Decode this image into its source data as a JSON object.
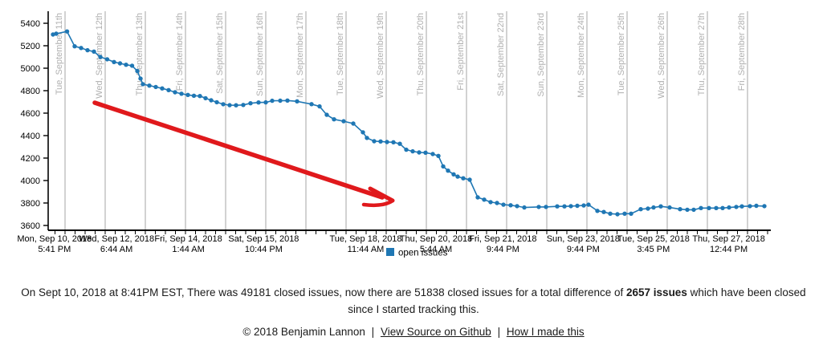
{
  "chart_data": {
    "type": "line",
    "title": "",
    "xlabel": "",
    "ylabel": "",
    "ylim": [
      3600,
      5400
    ],
    "grid": "vertical-daily",
    "legend": {
      "label": "open issues",
      "position": "bottom-center"
    },
    "colors": {
      "line": "#1f77b4",
      "grid": "#cdcdcd",
      "day_label": "#b0b0b0",
      "axis": "#000000",
      "arrow": "#e0191c"
    },
    "y_ticks": [
      5400,
      5200,
      5000,
      4800,
      4600,
      4400,
      4200,
      4000,
      3800,
      3600
    ],
    "x_gridlines": [
      {
        "day": 1,
        "label": "Tue, September 11th"
      },
      {
        "day": 2,
        "label": "Wed, September 12th"
      },
      {
        "day": 3,
        "label": "Thu, September 13th"
      },
      {
        "day": 4,
        "label": "Fri, September 14th"
      },
      {
        "day": 5,
        "label": "Sat, September 15th"
      },
      {
        "day": 6,
        "label": "Sun, September 16th"
      },
      {
        "day": 7,
        "label": "Mon, September 17th"
      },
      {
        "day": 8,
        "label": "Tue, September 18th"
      },
      {
        "day": 9,
        "label": "Wed, September 19th"
      },
      {
        "day": 10,
        "label": "Thu, September 20th"
      },
      {
        "day": 11,
        "label": "Fri, September 21st"
      },
      {
        "day": 12,
        "label": "Sat, September 22nd"
      },
      {
        "day": 13,
        "label": "Sun, September 23rd"
      },
      {
        "day": 14,
        "label": "Mon, September 24th"
      },
      {
        "day": 15,
        "label": "Tue, September 25th"
      },
      {
        "day": 16,
        "label": "Wed, September 26th"
      },
      {
        "day": 17,
        "label": "Thu, September 27th"
      },
      {
        "day": 18,
        "label": "Fri, September 28th"
      }
    ],
    "x_labels": [
      {
        "day": 0.737,
        "date": "Mon, Sep 10, 2018",
        "time": "5:41 PM"
      },
      {
        "day": 2.281,
        "date": "Wed, Sep 12, 2018",
        "time": "6:44 AM"
      },
      {
        "day": 4.072,
        "date": "Fri, Sep 14, 2018",
        "time": "1:44 AM"
      },
      {
        "day": 5.947,
        "date": "Sat, Sep 15, 2018",
        "time": "10:44 PM"
      },
      {
        "day": 8.489,
        "date": "Tue, Sep 18, 2018",
        "time": "11:44 AM"
      },
      {
        "day": 10.239,
        "date": "Thu, Sep 20, 2018",
        "time": "5:44 AM"
      },
      {
        "day": 11.906,
        "date": "Fri, Sep 21, 2018",
        "time": "9:44 PM"
      },
      {
        "day": 13.906,
        "date": "Sun, Sep 23, 2018",
        "time": "9:44 PM"
      },
      {
        "day": 15.656,
        "date": "Tue, Sep 25, 2018",
        "time": "3:45 PM"
      },
      {
        "day": 17.531,
        "date": "Thu, Sep 27, 2018",
        "time": "12:44 PM"
      }
    ],
    "points": [
      [
        0.7,
        5300
      ],
      [
        0.78,
        5307
      ],
      [
        1.05,
        5327
      ],
      [
        1.24,
        5195
      ],
      [
        1.4,
        5180
      ],
      [
        1.56,
        5160
      ],
      [
        1.72,
        5148
      ],
      [
        1.88,
        5100
      ],
      [
        2.05,
        5079
      ],
      [
        2.22,
        5055
      ],
      [
        2.37,
        5043
      ],
      [
        2.52,
        5031
      ],
      [
        2.67,
        5022
      ],
      [
        2.8,
        4975
      ],
      [
        2.88,
        4908
      ],
      [
        2.94,
        4858
      ],
      [
        3.1,
        4845
      ],
      [
        3.26,
        4833
      ],
      [
        3.42,
        4820
      ],
      [
        3.58,
        4805
      ],
      [
        3.74,
        4786
      ],
      [
        3.9,
        4773
      ],
      [
        4.06,
        4762
      ],
      [
        4.21,
        4755
      ],
      [
        4.36,
        4752
      ],
      [
        4.5,
        4733
      ],
      [
        4.64,
        4714
      ],
      [
        4.78,
        4697
      ],
      [
        4.94,
        4679
      ],
      [
        5.1,
        4671
      ],
      [
        5.26,
        4670
      ],
      [
        5.44,
        4673
      ],
      [
        5.62,
        4688
      ],
      [
        5.82,
        4695
      ],
      [
        6.0,
        4696
      ],
      [
        6.16,
        4710
      ],
      [
        6.36,
        4711
      ],
      [
        6.54,
        4712
      ],
      [
        6.78,
        4705
      ],
      [
        7.14,
        4680
      ],
      [
        7.34,
        4660
      ],
      [
        7.52,
        4585
      ],
      [
        7.7,
        4545
      ],
      [
        7.94,
        4528
      ],
      [
        8.18,
        4507
      ],
      [
        8.42,
        4429
      ],
      [
        8.52,
        4379
      ],
      [
        8.7,
        4350
      ],
      [
        8.86,
        4348
      ],
      [
        9.02,
        4343
      ],
      [
        9.18,
        4341
      ],
      [
        9.34,
        4327
      ],
      [
        9.5,
        4274
      ],
      [
        9.66,
        4260
      ],
      [
        9.82,
        4250
      ],
      [
        9.98,
        4248
      ],
      [
        10.16,
        4236
      ],
      [
        10.3,
        4219
      ],
      [
        10.42,
        4126
      ],
      [
        10.54,
        4088
      ],
      [
        10.68,
        4055
      ],
      [
        10.78,
        4035
      ],
      [
        10.92,
        4020
      ],
      [
        11.08,
        4007
      ],
      [
        11.28,
        3850
      ],
      [
        11.44,
        3830
      ],
      [
        11.6,
        3808
      ],
      [
        11.76,
        3800
      ],
      [
        11.92,
        3785
      ],
      [
        12.1,
        3780
      ],
      [
        12.26,
        3772
      ],
      [
        12.44,
        3760
      ],
      [
        12.8,
        3765
      ],
      [
        12.98,
        3765
      ],
      [
        13.26,
        3770
      ],
      [
        13.44,
        3770
      ],
      [
        13.6,
        3772
      ],
      [
        13.76,
        3775
      ],
      [
        13.92,
        3778
      ],
      [
        14.04,
        3785
      ],
      [
        14.26,
        3730
      ],
      [
        14.42,
        3720
      ],
      [
        14.58,
        3705
      ],
      [
        14.76,
        3700
      ],
      [
        14.94,
        3705
      ],
      [
        15.1,
        3705
      ],
      [
        15.34,
        3745
      ],
      [
        15.52,
        3750
      ],
      [
        15.66,
        3760
      ],
      [
        15.84,
        3770
      ],
      [
        16.06,
        3760
      ],
      [
        16.32,
        3745
      ],
      [
        16.5,
        3740
      ],
      [
        16.66,
        3740
      ],
      [
        16.84,
        3755
      ],
      [
        17.04,
        3755
      ],
      [
        17.22,
        3755
      ],
      [
        17.38,
        3755
      ],
      [
        17.54,
        3760
      ],
      [
        17.72,
        3765
      ],
      [
        17.86,
        3770
      ],
      [
        18.06,
        3772
      ],
      [
        18.22,
        3775
      ],
      [
        18.42,
        3772
      ]
    ],
    "annotation_arrow": {
      "from_day": 1.74,
      "from_value": 4693,
      "to_day": 9.02,
      "to_value": 3836
    }
  },
  "summary": {
    "prefix": "On Sept 10, 2018 at 8:41PM EST, There was 49181 closed issues, now there are 51838 closed issues for a total difference of ",
    "bold": "2657 issues",
    "suffix": " which have been closed since I started tracking this."
  },
  "footer": {
    "copyright": "© 2018 Benjamin Lannon",
    "separator": "|",
    "links": [
      {
        "label": "View Source on Github"
      },
      {
        "label": "How I made this"
      }
    ]
  }
}
